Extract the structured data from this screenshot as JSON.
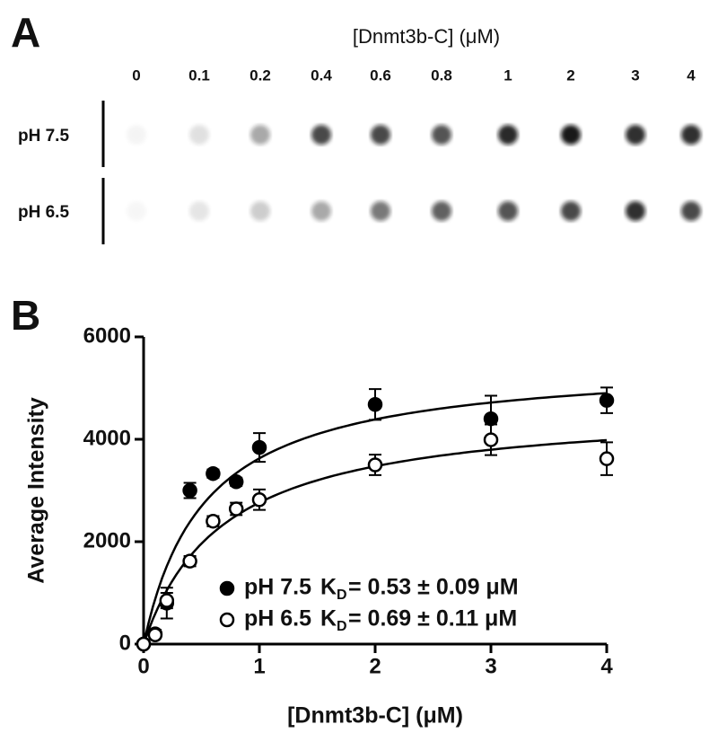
{
  "panel_a": {
    "label": "A",
    "title": "[Dnmt3b-C] (μM)",
    "concentrations": [
      "0",
      "0.1",
      "0.2",
      "0.4",
      "0.6",
      "0.8",
      "1",
      "2",
      "3",
      "4"
    ],
    "rows": [
      "pH 7.5",
      "pH 6.5"
    ]
  },
  "chart_data": {
    "type": "scatter",
    "panel_label": "B",
    "x_label": "[Dnmt3b-C] (μM)",
    "y_label": "Average Intensity",
    "x": [
      0,
      0.1,
      0.2,
      0.4,
      0.6,
      0.8,
      1,
      2,
      3,
      4
    ],
    "xlim": [
      0,
      4
    ],
    "xticks": [
      0,
      1,
      2,
      3,
      4
    ],
    "ylim": [
      0,
      6000
    ],
    "yticks": [
      0,
      2000,
      4000,
      6000
    ],
    "series": [
      {
        "name": "pH 7.5",
        "color": "#000000",
        "marker": "filled",
        "values": [
          0,
          200,
          800,
          3000,
          3330,
          3170,
          3840,
          4680,
          4400,
          4760
        ],
        "errors": [
          0,
          80,
          300,
          150,
          80,
          80,
          280,
          300,
          450,
          250
        ],
        "kd": 0.53,
        "bmax": 5550,
        "kd_symbol": "K",
        "kd_subscript": "D",
        "kd_label": "= 0.53 ± 0.09 μM"
      },
      {
        "name": "pH 6.5",
        "color": "#000000",
        "marker": "open",
        "values": [
          0,
          180,
          850,
          1620,
          2400,
          2640,
          2820,
          3500,
          3990,
          3620
        ],
        "errors": [
          0,
          50,
          150,
          100,
          100,
          120,
          200,
          200,
          300,
          320
        ],
        "kd": 0.69,
        "bmax": 4670,
        "kd_symbol": "K",
        "kd_subscript": "D",
        "kd_label": "= 0.69 ± 0.11 μM"
      }
    ]
  }
}
